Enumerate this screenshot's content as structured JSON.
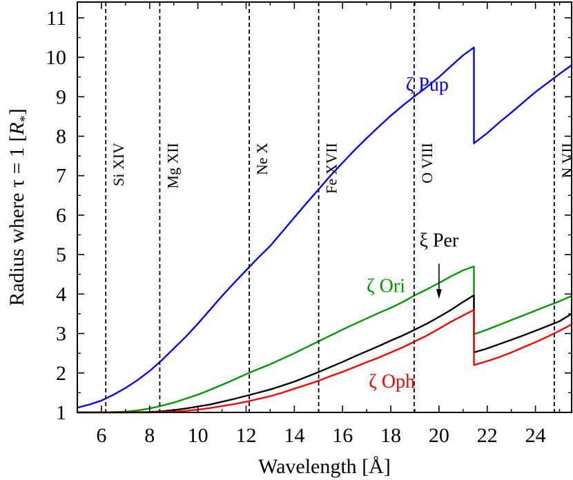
{
  "chart_data": {
    "type": "line",
    "xlabel": "Wavelength [Å]",
    "ylabel_prefix": "Radius where τ = 1  [",
    "ylabel_var": "R",
    "ylabel_sub": "*",
    "ylabel_suffix": "]",
    "xlim": [
      5.0,
      25.5
    ],
    "ylim": [
      1.0,
      11.4
    ],
    "xticks": [
      6,
      8,
      10,
      12,
      14,
      16,
      18,
      20,
      22,
      24
    ],
    "yticks": [
      1,
      2,
      3,
      4,
      5,
      6,
      7,
      8,
      9,
      10,
      11
    ],
    "grid": false,
    "vlines": [
      {
        "x": 6.18,
        "label": "Si XIV"
      },
      {
        "x": 8.42,
        "label": "Mg XII"
      },
      {
        "x": 12.13,
        "label": "Ne X"
      },
      {
        "x": 15.01,
        "label": "Fe XVII"
      },
      {
        "x": 18.97,
        "label": "O VIII"
      },
      {
        "x": 24.78,
        "label": "N VII"
      }
    ],
    "series": [
      {
        "name": "ζ Pup",
        "color": "#0000ff",
        "x": [
          5.0,
          5.5,
          6.0,
          6.5,
          7.0,
          7.5,
          8.0,
          8.5,
          9.0,
          9.5,
          10.0,
          10.5,
          11.0,
          11.5,
          12.0,
          12.5,
          13.0,
          13.5,
          14.0,
          14.5,
          15.0,
          15.5,
          16.0,
          16.5,
          17.0,
          17.5,
          18.0,
          18.5,
          19.0,
          19.5,
          20.0,
          20.5,
          21.0,
          21.45,
          21.45,
          22.0,
          22.5,
          23.0,
          23.5,
          24.0,
          24.5,
          25.0,
          25.5
        ],
        "y": [
          1.12,
          1.2,
          1.3,
          1.45,
          1.62,
          1.82,
          2.05,
          2.32,
          2.62,
          2.92,
          3.25,
          3.6,
          3.95,
          4.28,
          4.6,
          4.92,
          5.22,
          5.58,
          5.94,
          6.3,
          6.65,
          7.0,
          7.33,
          7.65,
          7.95,
          8.24,
          8.52,
          8.78,
          9.02,
          9.25,
          9.5,
          9.78,
          10.05,
          10.25,
          7.82,
          8.08,
          8.35,
          8.6,
          8.86,
          9.12,
          9.35,
          9.58,
          9.8
        ]
      },
      {
        "name": "ζ Ori",
        "color": "#009900",
        "x": [
          5.0,
          6.0,
          7.0,
          7.5,
          8.0,
          8.5,
          9.0,
          9.5,
          10.0,
          10.5,
          11.0,
          11.5,
          12.0,
          12.5,
          13.0,
          13.5,
          14.0,
          14.5,
          15.0,
          15.5,
          16.0,
          16.5,
          17.0,
          17.5,
          18.0,
          18.5,
          19.0,
          19.5,
          20.0,
          20.5,
          21.0,
          21.45,
          21.45,
          22.0,
          22.5,
          23.0,
          23.5,
          24.0,
          24.5,
          25.0,
          25.5
        ],
        "y": [
          1.0,
          1.0,
          1.02,
          1.05,
          1.1,
          1.17,
          1.25,
          1.35,
          1.45,
          1.57,
          1.7,
          1.83,
          1.97,
          2.1,
          2.22,
          2.36,
          2.5,
          2.65,
          2.8,
          2.95,
          3.1,
          3.24,
          3.38,
          3.52,
          3.65,
          3.8,
          3.97,
          4.12,
          4.28,
          4.45,
          4.6,
          4.7,
          2.98,
          3.1,
          3.22,
          3.34,
          3.46,
          3.58,
          3.7,
          3.82,
          3.95
        ]
      },
      {
        "name": "ξ Per",
        "color": "#000000",
        "x": [
          5.0,
          7.0,
          8.0,
          8.5,
          9.0,
          9.5,
          10.0,
          10.5,
          11.0,
          11.5,
          12.0,
          12.5,
          13.0,
          13.5,
          14.0,
          14.5,
          15.0,
          15.5,
          16.0,
          16.5,
          17.0,
          17.5,
          18.0,
          18.5,
          19.0,
          19.5,
          20.0,
          20.5,
          21.0,
          21.45,
          21.45,
          22.0,
          22.5,
          23.0,
          23.5,
          24.0,
          24.5,
          25.0,
          25.5
        ],
        "y": [
          1.0,
          1.0,
          1.01,
          1.03,
          1.06,
          1.1,
          1.15,
          1.2,
          1.27,
          1.34,
          1.42,
          1.5,
          1.58,
          1.68,
          1.78,
          1.9,
          2.02,
          2.15,
          2.28,
          2.42,
          2.55,
          2.68,
          2.82,
          2.95,
          3.1,
          3.25,
          3.42,
          3.6,
          3.8,
          3.97,
          2.52,
          2.62,
          2.73,
          2.84,
          2.95,
          3.07,
          3.19,
          3.31,
          3.5
        ]
      },
      {
        "name": "ζ Oph",
        "color": "#ff0000",
        "x": [
          5.0,
          8.0,
          9.0,
          9.5,
          10.0,
          10.5,
          11.0,
          11.5,
          12.0,
          12.5,
          13.0,
          13.5,
          14.0,
          14.5,
          15.0,
          15.5,
          16.0,
          16.5,
          17.0,
          17.5,
          18.0,
          18.5,
          19.0,
          19.5,
          20.0,
          20.5,
          21.0,
          21.45,
          21.45,
          22.0,
          22.5,
          23.0,
          23.5,
          24.0,
          24.5,
          25.0,
          25.5
        ],
        "y": [
          1.0,
          1.0,
          1.02,
          1.04,
          1.07,
          1.11,
          1.16,
          1.21,
          1.27,
          1.34,
          1.41,
          1.5,
          1.6,
          1.7,
          1.8,
          1.92,
          2.03,
          2.15,
          2.27,
          2.39,
          2.52,
          2.65,
          2.8,
          2.95,
          3.12,
          3.3,
          3.46,
          3.6,
          2.2,
          2.3,
          2.4,
          2.52,
          2.65,
          2.78,
          2.92,
          3.07,
          3.23
        ]
      }
    ],
    "annotations": [
      {
        "text": "ζ Pup",
        "x": 20.4,
        "y": 9.15,
        "color": "#0000ff",
        "anchor": "end"
      },
      {
        "text": "ζ Ori",
        "x": 18.6,
        "y": 4.05,
        "color": "#009900",
        "anchor": "end"
      },
      {
        "text": "ξ Per",
        "x": 20.0,
        "y": 5.2,
        "color": "#000000",
        "anchor": "middle"
      },
      {
        "text": "ζ Oph",
        "x": 19.0,
        "y": 1.63,
        "color": "#ff0000",
        "anchor": "end"
      }
    ],
    "arrow": {
      "label": "ξ Per",
      "from": [
        20.0,
        4.77
      ],
      "to": [
        20.0,
        3.88
      ]
    }
  }
}
